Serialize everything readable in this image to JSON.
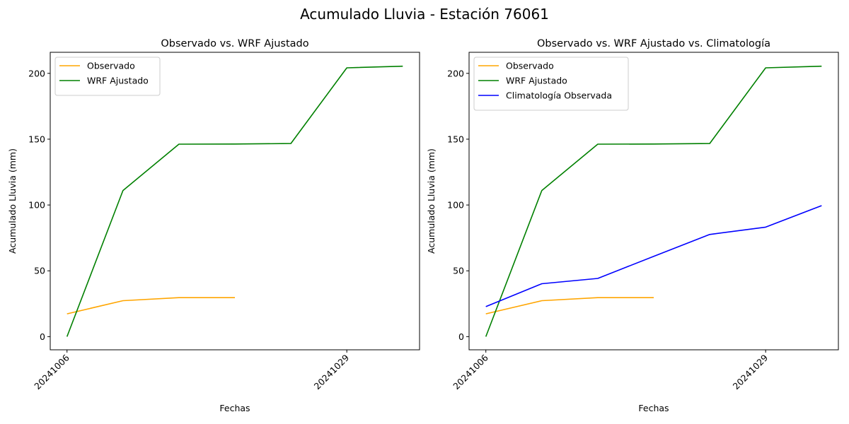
{
  "figure": {
    "title": "Acumulado Lluvia - Estación 76061"
  },
  "chart_data": [
    {
      "type": "line",
      "title": "Observado vs. WRF Ajustado",
      "xlabel": "Fechas",
      "ylabel": "Acumulado Lluvia (mm)",
      "x_tick_labels": [
        "20241006",
        "20241029"
      ],
      "x_tick_positions": [
        0,
        5
      ],
      "ylim": [
        -10,
        216
      ],
      "yticks": [
        0,
        50,
        100,
        150,
        200
      ],
      "legend": "top-left",
      "grid": false,
      "series": [
        {
          "name": "Observado",
          "color": "#ffa500",
          "x": [
            0,
            1,
            2,
            3
          ],
          "values": [
            17.3,
            27.3,
            29.6,
            29.6
          ]
        },
        {
          "name": "WRF Ajustado",
          "color": "#008000",
          "x": [
            0,
            1,
            2,
            3,
            4,
            5,
            6
          ],
          "values": [
            0,
            111,
            146.2,
            146.3,
            146.7,
            204.2,
            205.4
          ]
        }
      ]
    },
    {
      "type": "line",
      "title": "Observado vs. WRF Ajustado vs. Climatología",
      "xlabel": "Fechas",
      "ylabel": "Acumulado Lluvia (mm)",
      "x_tick_labels": [
        "20241006",
        "20241029"
      ],
      "x_tick_positions": [
        0,
        5
      ],
      "ylim": [
        -10,
        216
      ],
      "yticks": [
        0,
        50,
        100,
        150,
        200
      ],
      "legend": "top-left",
      "grid": false,
      "series": [
        {
          "name": "Observado",
          "color": "#ffa500",
          "x": [
            0,
            1,
            2,
            3
          ],
          "values": [
            17.3,
            27.3,
            29.6,
            29.6
          ]
        },
        {
          "name": "WRF Ajustado",
          "color": "#008000",
          "x": [
            0,
            1,
            2,
            3,
            4,
            5,
            6
          ],
          "values": [
            0,
            111,
            146.2,
            146.3,
            146.7,
            204.2,
            205.4
          ]
        },
        {
          "name": "Climatología Observada",
          "color": "#0000ff",
          "x": [
            0,
            1,
            2,
            3,
            4,
            5,
            6
          ],
          "values": [
            22.8,
            40.2,
            44.2,
            61,
            77.6,
            83.2,
            99.5
          ]
        }
      ]
    }
  ]
}
